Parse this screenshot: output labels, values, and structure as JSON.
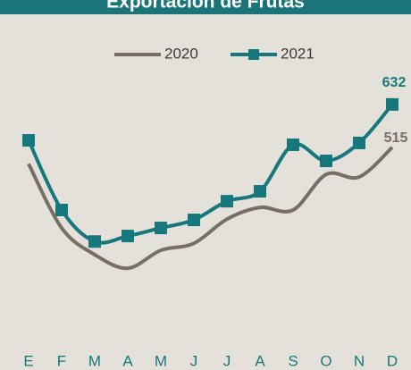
{
  "chart_data": {
    "type": "line",
    "title": "Exportación de Frutas",
    "categories": [
      "E",
      "F",
      "M",
      "A",
      "M",
      "J",
      "J",
      "A",
      "S",
      "O",
      "N",
      "D"
    ],
    "series": [
      {
        "name": "2020",
        "color": "#776e66",
        "values": [
          470,
          295,
          222,
          185,
          234,
          253,
          319,
          351,
          344,
          441,
          434,
          515
        ]
      },
      {
        "name": "2021",
        "color": "#16777d",
        "values": [
          534,
          344,
          258,
          273,
          295,
          317,
          368,
          395,
          522,
          478,
          527,
          632
        ]
      }
    ],
    "ylim": [
      0,
      700
    ]
  }
}
